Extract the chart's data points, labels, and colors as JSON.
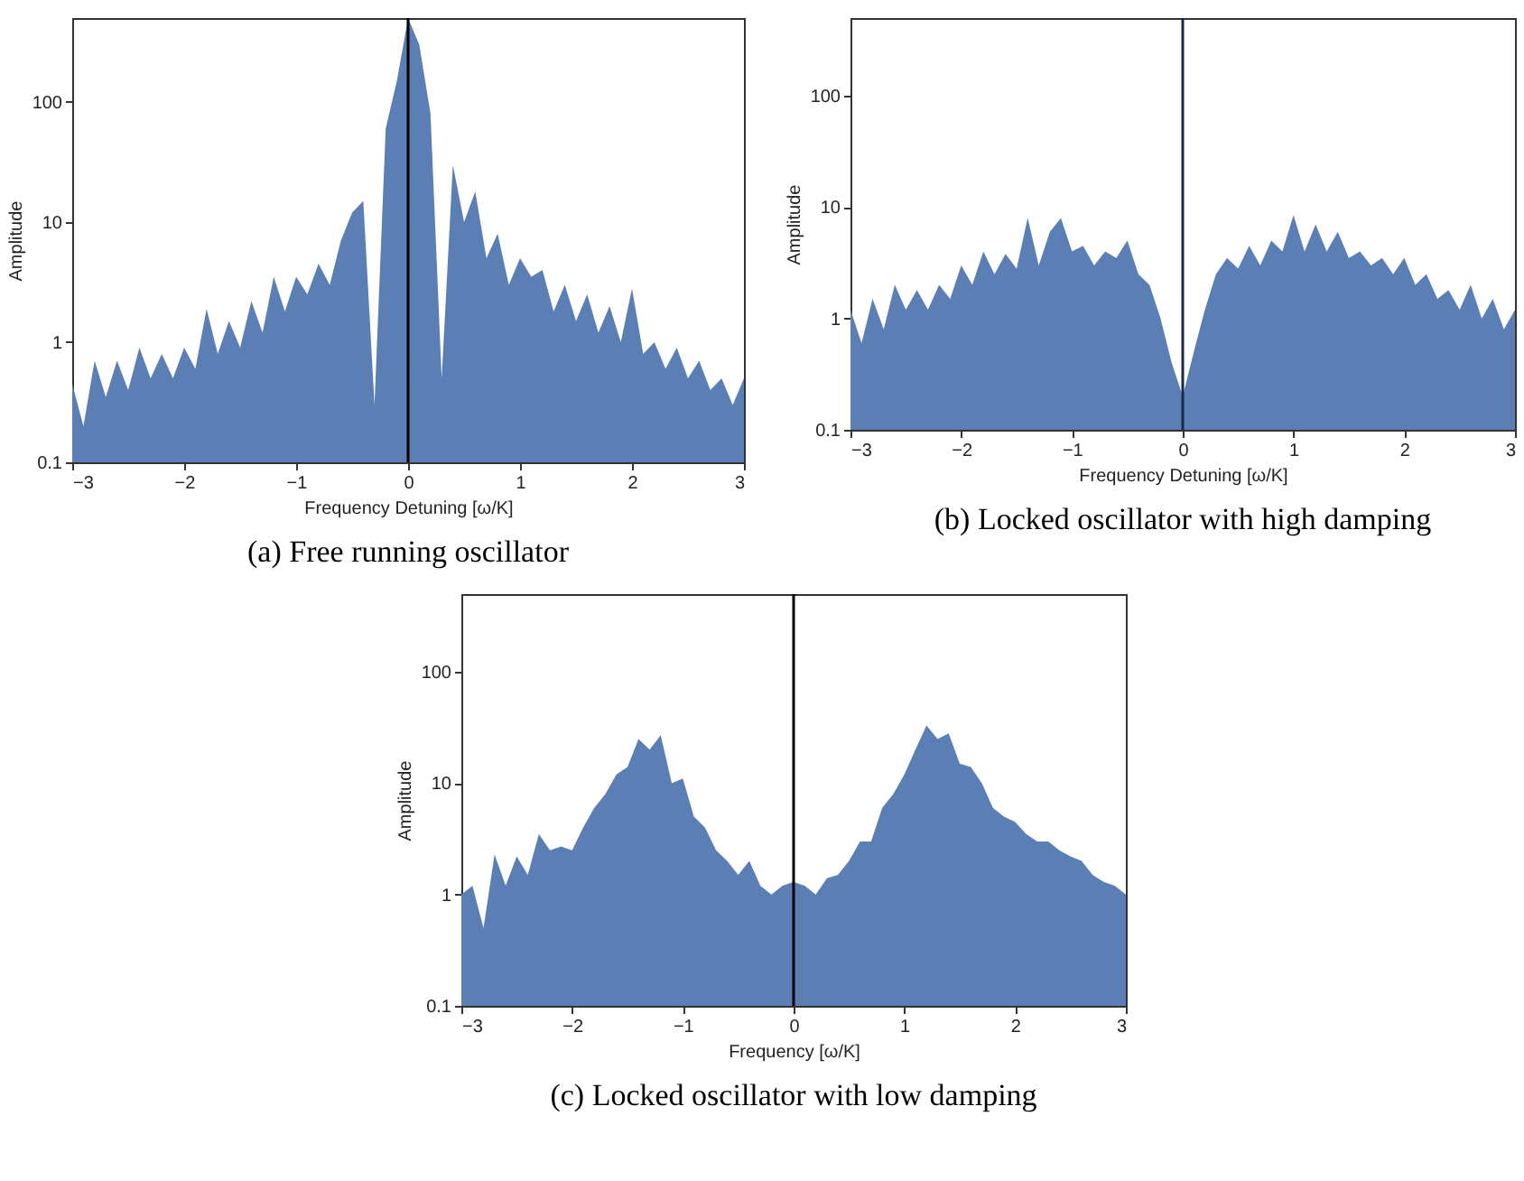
{
  "chart_data": [
    {
      "type": "area",
      "title": "(a) Free running oscillator",
      "xlabel": "Frequency Detuning [ω/K]",
      "ylabel": "Amplitude",
      "log": true,
      "xlim": [
        -3,
        3
      ],
      "ylim": [
        0.1,
        500
      ],
      "xticks": [
        -3,
        -2,
        -1,
        0,
        1,
        2,
        3
      ],
      "yticks": [
        0.1,
        1,
        10,
        100
      ],
      "x": [
        -3,
        -2.9,
        -2.8,
        -2.7,
        -2.6,
        -2.5,
        -2.4,
        -2.3,
        -2.2,
        -2.1,
        -2,
        -1.9,
        -1.8,
        -1.7,
        -1.6,
        -1.5,
        -1.4,
        -1.3,
        -1.2,
        -1.1,
        -1,
        -0.9,
        -0.8,
        -0.7,
        -0.6,
        -0.5,
        -0.4,
        -0.3,
        -0.2,
        -0.1,
        0,
        0.1,
        0.2,
        0.3,
        0.4,
        0.5,
        0.6,
        0.7,
        0.8,
        0.9,
        1,
        1.1,
        1.2,
        1.3,
        1.4,
        1.5,
        1.6,
        1.7,
        1.8,
        1.9,
        2,
        2.1,
        2.2,
        2.3,
        2.4,
        2.5,
        2.6,
        2.7,
        2.8,
        2.9,
        3
      ],
      "series": [
        {
          "color": "#5b7fb5",
          "values": [
            0.45,
            0.2,
            0.7,
            0.35,
            0.7,
            0.4,
            0.9,
            0.5,
            0.8,
            0.5,
            0.9,
            0.6,
            1.9,
            0.8,
            1.5,
            0.9,
            2.2,
            1.2,
            3.5,
            1.8,
            3.5,
            2.5,
            4.5,
            3,
            7,
            12,
            15,
            0.3,
            60,
            150,
            500,
            300,
            80,
            0.5,
            30,
            10,
            18,
            5,
            8,
            3,
            5,
            3.5,
            4,
            1.8,
            3,
            1.5,
            2.5,
            1.2,
            2,
            1,
            2.8,
            0.8,
            1,
            0.6,
            0.9,
            0.5,
            0.7,
            0.4,
            0.5,
            0.3,
            0.5
          ]
        }
      ],
      "ref_lines": [
        {
          "axis": "x",
          "value": 0,
          "color": "#000000"
        }
      ]
    },
    {
      "type": "area",
      "title": "(b) Locked oscillator with high damping",
      "xlabel": "Frequency Detuning [ω/K]",
      "ylabel": "Amplitude",
      "log": true,
      "xlim": [
        -3,
        3
      ],
      "ylim": [
        0.1,
        500
      ],
      "xticks": [
        -3,
        -2,
        -1,
        0,
        1,
        2,
        3
      ],
      "yticks": [
        0.1,
        1,
        10,
        100
      ],
      "x": [
        -3,
        -2.9,
        -2.8,
        -2.7,
        -2.6,
        -2.5,
        -2.4,
        -2.3,
        -2.2,
        -2.1,
        -2,
        -1.9,
        -1.8,
        -1.7,
        -1.6,
        -1.5,
        -1.4,
        -1.3,
        -1.2,
        -1.1,
        -1,
        -0.9,
        -0.8,
        -0.7,
        -0.6,
        -0.5,
        -0.4,
        -0.3,
        -0.2,
        -0.1,
        0,
        0.1,
        0.2,
        0.3,
        0.4,
        0.5,
        0.6,
        0.7,
        0.8,
        0.9,
        1,
        1.1,
        1.2,
        1.3,
        1.4,
        1.5,
        1.6,
        1.7,
        1.8,
        1.9,
        2,
        2.1,
        2.2,
        2.3,
        2.4,
        2.5,
        2.6,
        2.7,
        2.8,
        2.9,
        3
      ],
      "series": [
        {
          "color": "#5b7fb5",
          "values": [
            1.2,
            0.6,
            1.5,
            0.8,
            2,
            1.2,
            1.8,
            1.2,
            2,
            1.5,
            3,
            2,
            4,
            2.5,
            3.8,
            2.8,
            8,
            3,
            6,
            8,
            4,
            4.5,
            3,
            4,
            3.5,
            5,
            2.5,
            2,
            1,
            0.4,
            0.2,
            0.5,
            1.2,
            2.5,
            3.5,
            2.8,
            4.5,
            3,
            5,
            4,
            8.5,
            4,
            7,
            4,
            6,
            3.5,
            4,
            3,
            3.5,
            2.5,
            3.5,
            2,
            2.5,
            1.5,
            1.8,
            1.2,
            2,
            1,
            1.5,
            0.8,
            1.2
          ]
        }
      ],
      "ref_lines": [
        {
          "axis": "x",
          "value": 0,
          "color": "#1a2a4a"
        }
      ]
    },
    {
      "type": "area",
      "title": "(c) Locked oscillator with low damping",
      "xlabel": "Frequency [ω/K]",
      "ylabel": "Amplitude",
      "log": true,
      "xlim": [
        -3,
        3
      ],
      "ylim": [
        0.1,
        500
      ],
      "xticks": [
        -3,
        -2,
        -1,
        0,
        1,
        2,
        3
      ],
      "yticks": [
        0.1,
        1,
        10,
        100
      ],
      "x": [
        -3,
        -2.9,
        -2.8,
        -2.7,
        -2.6,
        -2.5,
        -2.4,
        -2.3,
        -2.2,
        -2.1,
        -2,
        -1.9,
        -1.8,
        -1.7,
        -1.6,
        -1.5,
        -1.4,
        -1.3,
        -1.2,
        -1.1,
        -1,
        -0.9,
        -0.8,
        -0.7,
        -0.6,
        -0.5,
        -0.4,
        -0.3,
        -0.2,
        -0.1,
        0,
        0.1,
        0.2,
        0.3,
        0.4,
        0.5,
        0.6,
        0.7,
        0.8,
        0.9,
        1,
        1.1,
        1.2,
        1.3,
        1.4,
        1.5,
        1.6,
        1.7,
        1.8,
        1.9,
        2,
        2.1,
        2.2,
        2.3,
        2.4,
        2.5,
        2.6,
        2.7,
        2.8,
        2.9,
        3
      ],
      "series": [
        {
          "color": "#5b7fb5",
          "values": [
            1,
            1.2,
            0.5,
            2.3,
            1.2,
            2.2,
            1.5,
            3.5,
            2.5,
            2.7,
            2.5,
            4,
            6,
            8,
            12,
            14,
            25,
            20,
            27,
            10,
            11,
            5,
            4,
            2.5,
            2,
            1.5,
            2,
            1.2,
            1,
            1.2,
            1.3,
            1.2,
            1,
            1.4,
            1.5,
            2,
            3,
            3,
            6,
            8,
            12,
            20,
            33,
            25,
            28,
            15,
            14,
            10,
            6,
            5,
            4.5,
            3.5,
            3,
            3,
            2.5,
            2.2,
            2,
            1.5,
            1.3,
            1.2,
            1
          ]
        }
      ],
      "ref_lines": [
        {
          "axis": "x",
          "value": 0,
          "color": "#000000"
        }
      ]
    }
  ]
}
